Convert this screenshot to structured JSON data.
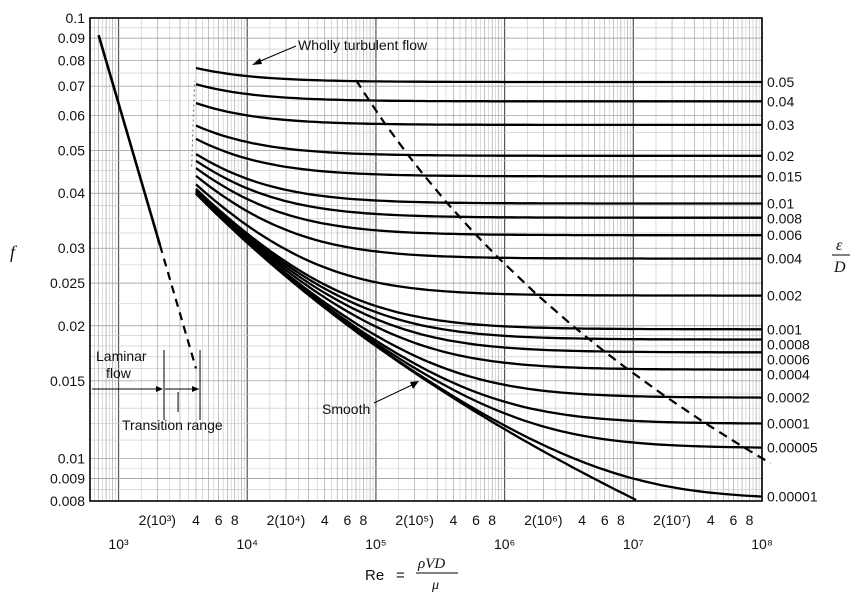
{
  "chart_data": {
    "type": "line",
    "x_scale": "log",
    "y_scale": "log",
    "xlim": [
      600,
      100000000
    ],
    "ylim": [
      0.008,
      0.1
    ],
    "grid": true,
    "y_axis_label": "f",
    "x_axis_label": "Re",
    "x_axis_formula": "= ρVD/μ",
    "x_axis_formula_num": "ρVD",
    "x_axis_formula_den": "μ",
    "right_axis_label_num": "ε",
    "right_axis_label_den": "D",
    "y_ticks": [
      {
        "v": 0.1,
        "label": "0.1"
      },
      {
        "v": 0.09,
        "label": "0.09"
      },
      {
        "v": 0.08,
        "label": "0.08"
      },
      {
        "v": 0.07,
        "label": "0.07"
      },
      {
        "v": 0.06,
        "label": "0.06"
      },
      {
        "v": 0.05,
        "label": "0.05"
      },
      {
        "v": 0.04,
        "label": "0.04"
      },
      {
        "v": 0.03,
        "label": "0.03"
      },
      {
        "v": 0.025,
        "label": "0.025"
      },
      {
        "v": 0.02,
        "label": "0.02"
      },
      {
        "v": 0.015,
        "label": "0.015"
      },
      {
        "v": 0.01,
        "label": "0.01"
      },
      {
        "v": 0.009,
        "label": "0.009"
      },
      {
        "v": 0.008,
        "label": "0.008"
      }
    ],
    "x_ticks_minor_labels": [
      {
        "v": 2000,
        "label": "2(10³)"
      },
      {
        "v": 4000,
        "label": "4"
      },
      {
        "v": 6000,
        "label": "6"
      },
      {
        "v": 8000,
        "label": "8"
      },
      {
        "v": 20000,
        "label": "2(10⁴)"
      },
      {
        "v": 40000,
        "label": "4"
      },
      {
        "v": 60000,
        "label": "6"
      },
      {
        "v": 80000,
        "label": "8"
      },
      {
        "v": 200000,
        "label": "2(10⁵)"
      },
      {
        "v": 400000,
        "label": "4"
      },
      {
        "v": 600000,
        "label": "6"
      },
      {
        "v": 800000,
        "label": "8"
      },
      {
        "v": 2000000,
        "label": "2(10⁶)"
      },
      {
        "v": 4000000,
        "label": "4"
      },
      {
        "v": 6000000,
        "label": "6"
      },
      {
        "v": 8000000,
        "label": "8"
      },
      {
        "v": 20000000,
        "label": "2(10⁷)"
      },
      {
        "v": 40000000,
        "label": "4"
      },
      {
        "v": 60000000,
        "label": "6"
      },
      {
        "v": 80000000,
        "label": "8"
      }
    ],
    "x_ticks_decade_labels": [
      {
        "v": 1000,
        "label": "10³"
      },
      {
        "v": 10000,
        "label": "10⁴"
      },
      {
        "v": 100000,
        "label": "10⁵"
      },
      {
        "v": 1000000,
        "label": "10⁶"
      },
      {
        "v": 10000000,
        "label": "10⁷"
      },
      {
        "v": 100000000,
        "label": "10⁸"
      }
    ],
    "relative_roughness": [
      {
        "label": "0.05",
        "value": 0.05
      },
      {
        "label": "0.04",
        "value": 0.04
      },
      {
        "label": "0.03",
        "value": 0.03
      },
      {
        "label": "0.02",
        "value": 0.02
      },
      {
        "label": "0.015",
        "value": 0.015
      },
      {
        "label": "0.01",
        "value": 0.01
      },
      {
        "label": "0.008",
        "value": 0.008
      },
      {
        "label": "0.006",
        "value": 0.006
      },
      {
        "label": "0.004",
        "value": 0.004
      },
      {
        "label": "0.002",
        "value": 0.002
      },
      {
        "label": "0.001",
        "value": 0.001
      },
      {
        "label": "0.0008",
        "value": 0.0008
      },
      {
        "label": "0.0006",
        "value": 0.0006
      },
      {
        "label": "0.0004",
        "value": 0.0004
      },
      {
        "label": "0.0002",
        "value": 0.0002
      },
      {
        "label": "0.0001",
        "value": 0.0001
      },
      {
        "label": "0.00005",
        "value": 5e-05
      },
      {
        "label": "0.00001",
        "value": 1e-05
      }
    ],
    "annotations": {
      "wholly_turbulent": "Wholly turbulent flow",
      "laminar_line1": "Laminar",
      "laminar_line2": "flow",
      "transition": "Transition range",
      "smooth": "Smooth"
    }
  }
}
